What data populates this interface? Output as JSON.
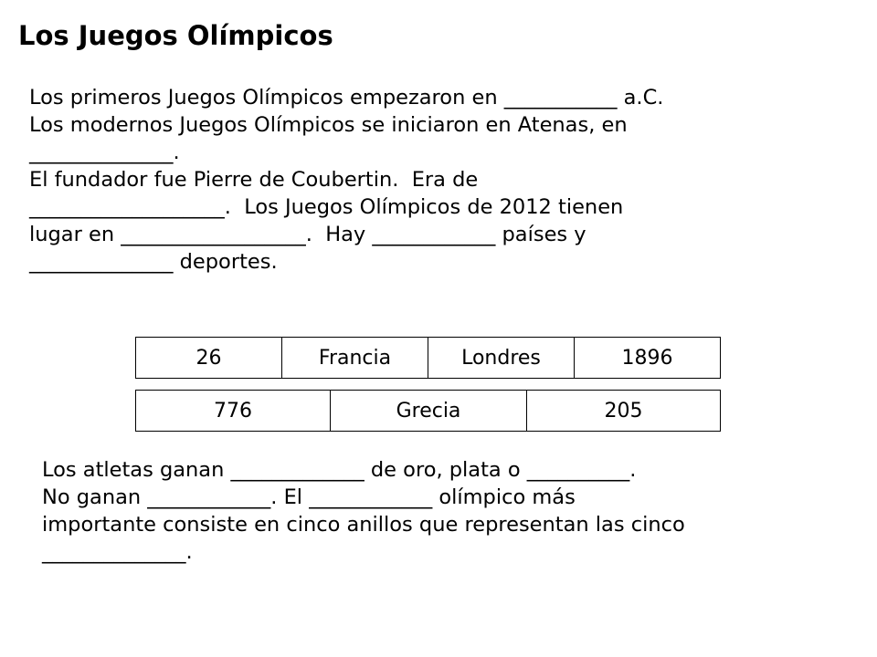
{
  "title": "Los Juegos Olímpicos",
  "paragraph1": {
    "lines": [
      "Los primeros Juegos Olímpicos empezaron en ___________ a.C.",
      "Los modernos Juegos Olímpicos se iniciaron en Atenas, en",
      "______________.",
      "El fundador fue Pierre de Coubertin.  Era de",
      "___________________.  Los Juegos Olímpicos de 2012 tienen",
      "lugar en __________________.  Hay ____________ países y",
      "______________ deportes."
    ]
  },
  "word_bank": {
    "row1": [
      "26",
      "Francia",
      "Londres",
      "1896"
    ],
    "row2": [
      "776",
      "Grecia",
      "205"
    ]
  },
  "paragraph2": {
    "lines": [
      "Los atletas ganan _____________ de oro, plata o __________.",
      "No ganan ____________. El ____________ olímpico más",
      "importante consiste en cinco anillos que representan las cinco",
      "______________."
    ]
  }
}
